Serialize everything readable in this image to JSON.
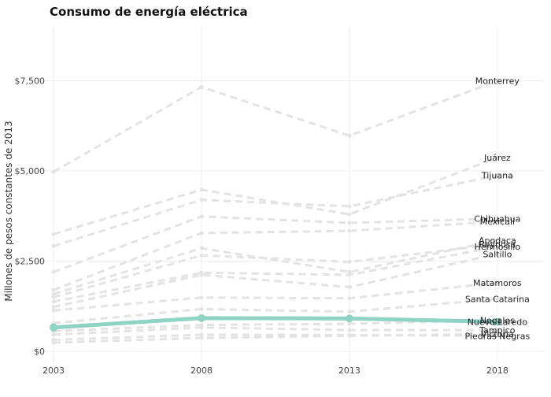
{
  "chart_data": {
    "type": "line",
    "title": "Consumo de energía eléctrica",
    "xlabel": "",
    "ylabel": "Millones de pesos constantes de 2013",
    "x": [
      2003,
      2008,
      2013,
      2018
    ],
    "x_tick_labels": [
      "2003",
      "2008",
      "2013",
      "2018"
    ],
    "y_ticks": [
      0,
      2500,
      5000,
      7500
    ],
    "y_tick_labels": [
      "$0",
      "$2,500",
      "$5,000",
      "$7,500"
    ],
    "xlim": [
      2002.2,
      2019.6
    ],
    "ylim": [
      -350,
      9000
    ],
    "grid": true,
    "legend": "none",
    "colors": {
      "highlight": "#8fd3c4",
      "background_series": "#e3e3e3",
      "grid": "#efefef"
    },
    "highlighted_series": "Nuevo Laredo",
    "series": [
      {
        "name": "Monterrey",
        "values": [
          4980,
          7330,
          5980,
          7500
        ]
      },
      {
        "name": "Juárez",
        "values": [
          3250,
          4480,
          3800,
          5370
        ]
      },
      {
        "name": "Tijuana",
        "values": [
          2920,
          4200,
          4020,
          4880
        ]
      },
      {
        "name": "Chihuahua",
        "values": [
          2200,
          3740,
          3560,
          3680
        ]
      },
      {
        "name": "Mexicali",
        "values": [
          1700,
          3280,
          3340,
          3600
        ]
      },
      {
        "name": "Apodaca",
        "values": [
          1590,
          2860,
          2200,
          3080
        ]
      },
      {
        "name": "Reynosa",
        "values": [
          1500,
          2660,
          2480,
          2970
        ]
      },
      {
        "name": "Hermosillo",
        "values": [
          1380,
          2180,
          2120,
          2900
        ]
      },
      {
        "name": "Saltillo",
        "values": [
          1230,
          2120,
          1780,
          2700
        ]
      },
      {
        "name": "Matamoros",
        "values": [
          1130,
          1490,
          1470,
          1900
        ]
      },
      {
        "name": "Santa Catarina",
        "values": [
          780,
          1170,
          1100,
          1450
        ]
      },
      {
        "name": "Nuevo Laredo",
        "values": [
          660,
          920,
          910,
          820
        ]
      },
      {
        "name": "Nogales",
        "values": [
          560,
          730,
          760,
          860
        ]
      },
      {
        "name": "Tampico",
        "values": [
          460,
          660,
          590,
          590
        ]
      },
      {
        "name": "Piedras Negras",
        "values": [
          320,
          460,
          450,
          430
        ]
      },
      {
        "name": "Victoria",
        "values": [
          240,
          370,
          430,
          480
        ]
      }
    ]
  }
}
